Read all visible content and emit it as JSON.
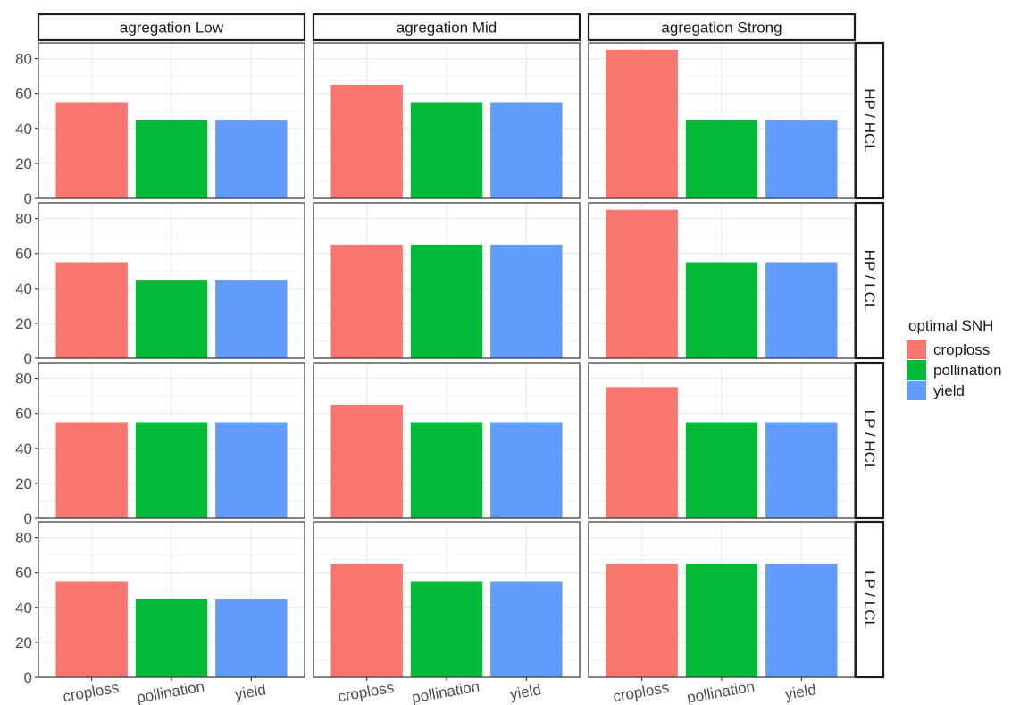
{
  "chart_data": {
    "type": "bar",
    "facet_columns": [
      "agregation Low",
      "agregation Mid",
      "agregation Strong"
    ],
    "facet_rows": [
      "HP / HCL",
      "HP / LCL",
      "LP / HCL",
      "LP / LCL"
    ],
    "categories": [
      "croploss",
      "pollination",
      "yield"
    ],
    "colors": {
      "croploss": "#F8766D",
      "pollination": "#00BA38",
      "yield": "#619CFF"
    },
    "y_ticks": [
      0,
      20,
      40,
      60,
      80
    ],
    "ylim": [
      0,
      89
    ],
    "grid": true,
    "legend": {
      "title": "optimal SNH",
      "entries": [
        "croploss",
        "pollination",
        "yield"
      ],
      "position": "right"
    },
    "panels": [
      [
        [
          55,
          45,
          45
        ],
        [
          65,
          55,
          55
        ],
        [
          85,
          45,
          45
        ]
      ],
      [
        [
          55,
          45,
          45
        ],
        [
          65,
          65,
          65
        ],
        [
          85,
          55,
          55
        ]
      ],
      [
        [
          55,
          55,
          55
        ],
        [
          65,
          55,
          55
        ],
        [
          75,
          55,
          55
        ]
      ],
      [
        [
          55,
          45,
          45
        ],
        [
          65,
          55,
          55
        ],
        [
          65,
          65,
          65
        ]
      ]
    ]
  }
}
